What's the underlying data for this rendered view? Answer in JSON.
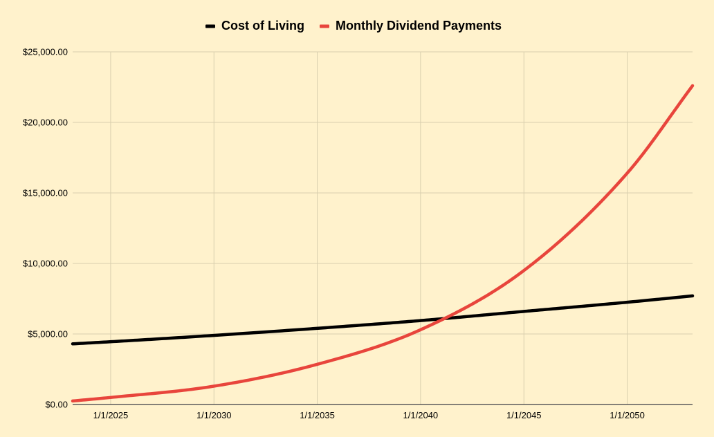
{
  "colors": {
    "background": "#fff2cc",
    "gridline": "#d9cfae",
    "axis_line": "#5b5b5b"
  },
  "chart_data": {
    "type": "line",
    "title": "",
    "xlabel": "",
    "ylabel": "",
    "grid": true,
    "legend_position": "top",
    "ylim": [
      0,
      25000
    ],
    "xlim": [
      "2023-03-01",
      "2053-03-01"
    ],
    "y_ticks": [
      0,
      5000,
      10000,
      15000,
      20000,
      25000
    ],
    "y_tick_labels": [
      "$0.00",
      "$5,000.00",
      "$10,000.00",
      "$15,000.00",
      "$20,000.00",
      "$25,000.00"
    ],
    "x_ticks": [
      "2025-01-01",
      "2030-01-01",
      "2035-01-01",
      "2040-01-01",
      "2045-01-01",
      "2050-01-01"
    ],
    "x_tick_labels": [
      "1/1/2025",
      "1/1/2030",
      "1/1/2035",
      "1/1/2040",
      "1/1/2045",
      "1/1/2050"
    ],
    "x": [
      "2023-03-01",
      "2025-01-01",
      "2030-01-01",
      "2035-01-01",
      "2040-01-01",
      "2045-01-01",
      "2050-01-01",
      "2053-03-01"
    ],
    "series": [
      {
        "name": "Cost of Living",
        "color": "#000000",
        "values": [
          4300,
          4450,
          4900,
          5400,
          5950,
          6600,
          7250,
          7700
        ]
      },
      {
        "name": "Monthly Dividend Payments",
        "color": "#e8453c",
        "values": [
          250,
          500,
          1300,
          2850,
          5300,
          9500,
          16400,
          22600
        ]
      }
    ]
  }
}
